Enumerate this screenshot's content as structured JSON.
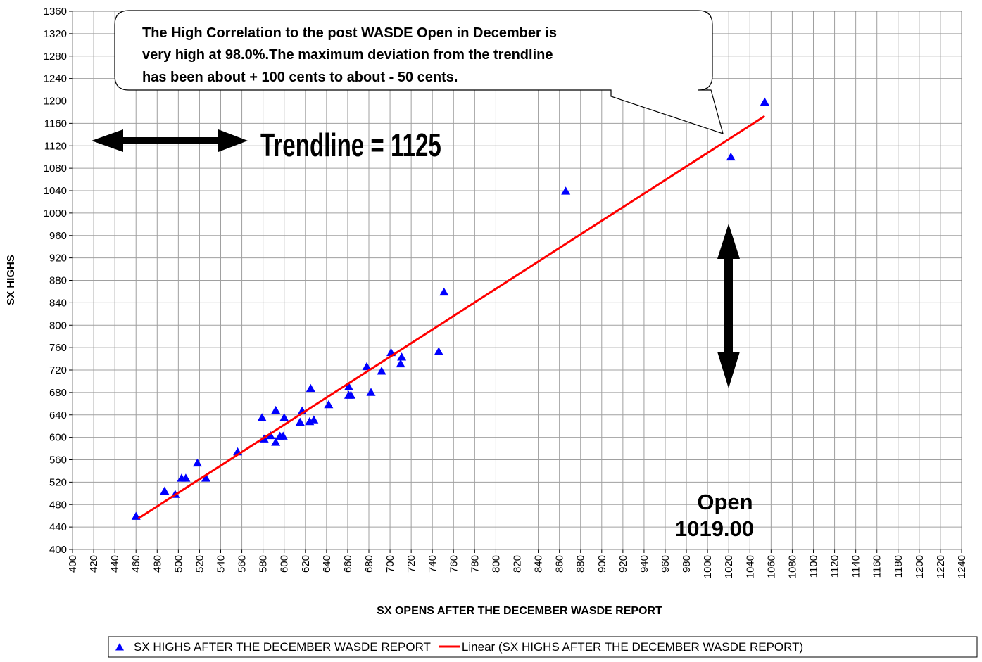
{
  "chart_data": {
    "type": "scatter",
    "x_label": "SX OPENS AFTER THE DECEMBER WASDE REPORT",
    "y_label": "SX HIGHS",
    "xlim": [
      400,
      1240
    ],
    "ylim": [
      400,
      1360
    ],
    "xticks": [
      400,
      420,
      440,
      460,
      480,
      500,
      520,
      540,
      560,
      580,
      600,
      620,
      640,
      660,
      680,
      700,
      720,
      740,
      760,
      780,
      800,
      820,
      840,
      860,
      880,
      900,
      920,
      940,
      960,
      980,
      1000,
      1020,
      1040,
      1060,
      1080,
      1100,
      1120,
      1140,
      1160,
      1180,
      1200,
      1220,
      1240
    ],
    "yticks": [
      400,
      440,
      480,
      520,
      560,
      600,
      640,
      680,
      720,
      760,
      800,
      840,
      880,
      920,
      960,
      1000,
      1040,
      1080,
      1120,
      1160,
      1200,
      1240,
      1280,
      1320,
      1360
    ],
    "grid": true,
    "legend": "bottom",
    "series": [
      {
        "name": "SX HIGHS AFTER THE DECEMBER WASDE REPORT",
        "color": "#0000ff",
        "marker": "triangle",
        "x": [
          460,
          487,
          497,
          503,
          507,
          518,
          526,
          556,
          579,
          581,
          587,
          592,
          592,
          596,
          599,
          600,
          615,
          617,
          624,
          628,
          625,
          642,
          661,
          661,
          663,
          678,
          682,
          692,
          701,
          710,
          711,
          746,
          751,
          866,
          1022,
          1054
        ],
        "values": [
          459,
          504,
          498,
          527,
          527,
          554,
          527,
          574,
          635,
          597,
          603,
          648,
          591,
          602,
          602,
          635,
          627,
          647,
          628,
          631,
          687,
          658,
          690,
          675,
          675,
          726,
          680,
          718,
          751,
          731,
          743,
          753,
          859,
          1039,
          1100,
          1198
        ]
      },
      {
        "name": "Linear (SX HIGHS AFTER THE DECEMBER WASDE REPORT)",
        "color": "#ff0000",
        "marker": "line",
        "x": [
          462,
          1054
        ],
        "values": [
          455,
          1173
        ]
      }
    ],
    "annotations": {
      "callout": [
        "The High Correlation to the post WASDE Open in December is",
        "very high at 98.0%.The maximum deviation from the trendline",
        "has been about + 100 cents to about - 50 cents."
      ],
      "trendline": "Trendline = 1125",
      "open_label": "Open",
      "open_value": "1019.00"
    }
  }
}
